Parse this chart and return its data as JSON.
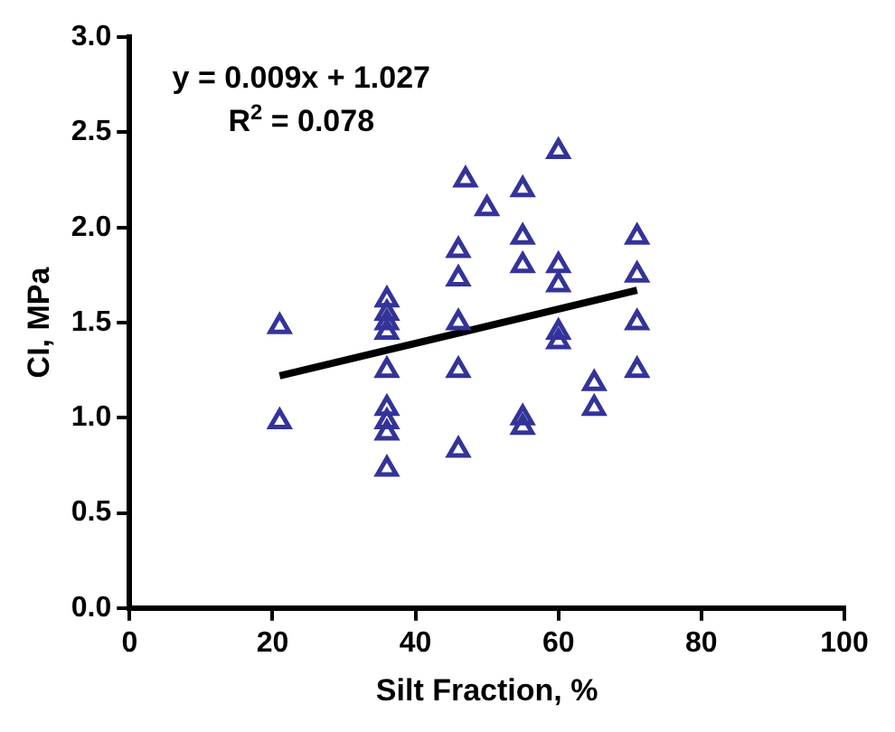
{
  "chart_data": {
    "type": "scatter",
    "xlabel": "Silt Fraction, %",
    "ylabel": "CI, MPa",
    "annotations": [
      "y = 0.009x + 1.027",
      "R$^{2}$ = 0.078"
    ],
    "xlim": [
      0,
      100
    ],
    "xticks": [
      0,
      20,
      40,
      60,
      80,
      100
    ],
    "ylim": [
      0,
      3
    ],
    "yticks": [
      {
        "value": 0,
        "label": "0.0"
      },
      0.5,
      {
        "value": 1,
        "label": "1.0"
      },
      1.5,
      {
        "value": 2,
        "label": "2.0"
      },
      2.5,
      {
        "value": 3,
        "label": "3.0"
      }
    ],
    "grid": false,
    "series": [
      {
        "marker": "triangle",
        "color": "#33339a",
        "x": [
          21,
          21,
          36,
          36,
          36,
          36,
          36,
          36,
          36,
          36,
          36,
          46,
          46,
          46,
          46,
          46,
          47,
          50,
          55,
          55,
          55,
          55,
          55,
          60,
          60,
          60,
          60,
          60,
          65,
          65,
          71,
          71,
          71,
          71
        ],
        "values": [
          1.48,
          0.98,
          1.62,
          1.55,
          1.5,
          1.45,
          1.25,
          1.05,
          0.98,
          0.92,
          0.73,
          1.88,
          1.73,
          1.5,
          1.25,
          0.83,
          2.25,
          2.1,
          2.2,
          1.95,
          1.8,
          1.0,
          0.95,
          2.4,
          1.8,
          1.7,
          1.45,
          1.4,
          1.18,
          1.05,
          1.95,
          1.75,
          1.5,
          1.25
        ]
      },
      {
        "type": "line",
        "color": "#000000",
        "x": [
          21,
          71
        ],
        "values": [
          1.22,
          1.67
        ]
      }
    ]
  }
}
